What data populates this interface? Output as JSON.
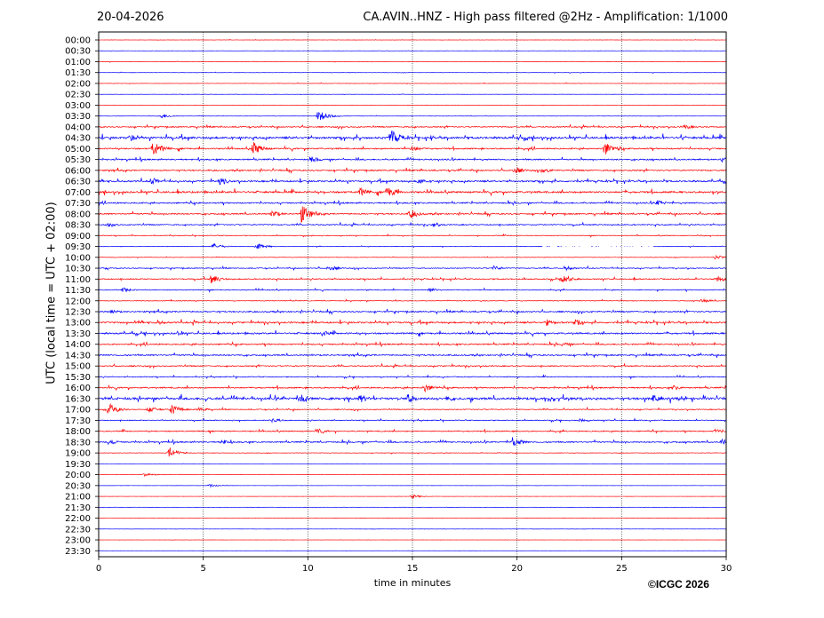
{
  "header": {
    "date": "20-04-2026",
    "title": "CA.AVIN..HNZ - High pass filtered @2Hz - Amplification: 1/1000"
  },
  "footer": {
    "copyright": "©ICGC 2026"
  },
  "colors": {
    "trace_a": "#ff0000",
    "trace_b": "#0000ff",
    "grid": "#000000",
    "axis": "#000000",
    "background": "#ffffff"
  },
  "chart_data": {
    "type": "line",
    "title": "CA.AVIN..HNZ - High pass filtered @2Hz - Amplification: 1/1000",
    "xlabel": "time in minutes",
    "ylabel": "UTC (local time = UTC + 02:00)",
    "xlim": [
      0,
      30
    ],
    "x_ticks": [
      0,
      5,
      10,
      15,
      20,
      25,
      30
    ],
    "grid": "vertical dotted lines at x ticks",
    "rows": [
      {
        "label": "00:00",
        "color": "red",
        "activity": 0.05,
        "events": []
      },
      {
        "label": "00:30",
        "color": "blue",
        "activity": 0.05,
        "events": []
      },
      {
        "label": "01:00",
        "color": "red",
        "activity": 0.08,
        "events": []
      },
      {
        "label": "01:30",
        "color": "blue",
        "activity": 0.08,
        "events": []
      },
      {
        "label": "02:00",
        "color": "red",
        "activity": 0.08,
        "events": []
      },
      {
        "label": "02:30",
        "color": "blue",
        "activity": 0.05,
        "events": []
      },
      {
        "label": "03:00",
        "color": "red",
        "activity": 0.05,
        "events": []
      },
      {
        "label": "03:30",
        "color": "blue",
        "activity": 0.08,
        "events": [
          {
            "t": 3.0,
            "a": 0.4
          },
          {
            "t": 10.5,
            "a": 1.0
          }
        ]
      },
      {
        "label": "04:00",
        "color": "red",
        "activity": 0.25,
        "events": [
          {
            "t": 28.0,
            "a": 0.4
          }
        ]
      },
      {
        "label": "04:30",
        "color": "blue",
        "activity": 0.45,
        "events": [
          {
            "t": 14.0,
            "a": 1.4
          },
          {
            "t": 1.5,
            "a": 0.6
          }
        ]
      },
      {
        "label": "05:00",
        "color": "red",
        "activity": 0.3,
        "events": [
          {
            "t": 2.6,
            "a": 1.2
          },
          {
            "t": 7.4,
            "a": 1.1
          },
          {
            "t": 24.2,
            "a": 1.2
          },
          {
            "t": 15.0,
            "a": 0.5
          }
        ]
      },
      {
        "label": "05:30",
        "color": "blue",
        "activity": 0.3,
        "events": [
          {
            "t": 10.2,
            "a": 0.5
          },
          {
            "t": 29.8,
            "a": 0.5
          }
        ]
      },
      {
        "label": "06:00",
        "color": "red",
        "activity": 0.3,
        "events": [
          {
            "t": 19.9,
            "a": 0.6
          },
          {
            "t": 21.2,
            "a": 0.5
          }
        ]
      },
      {
        "label": "06:30",
        "color": "blue",
        "activity": 0.35,
        "events": [
          {
            "t": 2.5,
            "a": 0.6
          },
          {
            "t": 5.8,
            "a": 0.6
          },
          {
            "t": 15.3,
            "a": 0.5
          }
        ]
      },
      {
        "label": "07:00",
        "color": "red",
        "activity": 0.4,
        "events": [
          {
            "t": 12.5,
            "a": 0.7
          },
          {
            "t": 13.8,
            "a": 0.9
          }
        ]
      },
      {
        "label": "07:30",
        "color": "blue",
        "activity": 0.3,
        "events": [
          {
            "t": 26.7,
            "a": 0.5
          }
        ]
      },
      {
        "label": "08:00",
        "color": "red",
        "activity": 0.3,
        "events": [
          {
            "t": 9.7,
            "a": 1.5
          },
          {
            "t": 8.3,
            "a": 0.6
          },
          {
            "t": 14.9,
            "a": 0.8
          }
        ]
      },
      {
        "label": "08:30",
        "color": "blue",
        "activity": 0.25,
        "events": [
          {
            "t": 0.5,
            "a": 0.4
          },
          {
            "t": 16.0,
            "a": 0.4
          }
        ]
      },
      {
        "label": "09:00",
        "color": "red",
        "activity": 0.15,
        "events": []
      },
      {
        "label": "09:30",
        "color": "blue",
        "activity": 0.12,
        "events": [
          {
            "t": 5.5,
            "a": 0.5
          },
          {
            "t": 7.6,
            "a": 0.5
          }
        ],
        "gap": [
          21.2,
          26.5
        ]
      },
      {
        "label": "10:00",
        "color": "red",
        "activity": 0.1,
        "events": [
          {
            "t": 29.5,
            "a": 0.4
          }
        ]
      },
      {
        "label": "10:30",
        "color": "blue",
        "activity": 0.2,
        "events": [
          {
            "t": 11.0,
            "a": 0.5
          },
          {
            "t": 18.9,
            "a": 0.4
          },
          {
            "t": 22.3,
            "a": 0.4
          }
        ]
      },
      {
        "label": "11:00",
        "color": "red",
        "activity": 0.25,
        "events": [
          {
            "t": 5.4,
            "a": 0.8
          },
          {
            "t": 22.2,
            "a": 0.8
          },
          {
            "t": 29.6,
            "a": 0.5
          }
        ]
      },
      {
        "label": "11:30",
        "color": "blue",
        "activity": 0.2,
        "events": [
          {
            "t": 1.2,
            "a": 0.4
          },
          {
            "t": 15.8,
            "a": 0.4
          }
        ]
      },
      {
        "label": "12:00",
        "color": "red",
        "activity": 0.15,
        "events": [
          {
            "t": 28.8,
            "a": 0.4
          }
        ]
      },
      {
        "label": "12:30",
        "color": "blue",
        "activity": 0.3,
        "events": [
          {
            "t": 0.6,
            "a": 0.4
          }
        ]
      },
      {
        "label": "13:00",
        "color": "red",
        "activity": 0.35,
        "events": [
          {
            "t": 21.4,
            "a": 0.6
          },
          {
            "t": 22.8,
            "a": 0.5
          },
          {
            "t": 2.8,
            "a": 0.4
          }
        ]
      },
      {
        "label": "13:30",
        "color": "blue",
        "activity": 0.35,
        "events": [
          {
            "t": 10.7,
            "a": 0.5
          },
          {
            "t": 3.7,
            "a": 0.4
          }
        ]
      },
      {
        "label": "14:00",
        "color": "red",
        "activity": 0.3,
        "events": [
          {
            "t": 22.2,
            "a": 0.4
          }
        ]
      },
      {
        "label": "14:30",
        "color": "blue",
        "activity": 0.3,
        "events": []
      },
      {
        "label": "15:00",
        "color": "red",
        "activity": 0.25,
        "events": []
      },
      {
        "label": "15:30",
        "color": "blue",
        "activity": 0.2,
        "events": []
      },
      {
        "label": "16:00",
        "color": "red",
        "activity": 0.3,
        "events": [
          {
            "t": 15.6,
            "a": 0.7
          },
          {
            "t": 27.5,
            "a": 0.4
          }
        ]
      },
      {
        "label": "16:30",
        "color": "blue",
        "activity": 0.5,
        "events": [
          {
            "t": 9.7,
            "a": 0.8
          },
          {
            "t": 12.5,
            "a": 0.7
          },
          {
            "t": 14.8,
            "a": 0.8
          },
          {
            "t": 16.6,
            "a": 0.6
          },
          {
            "t": 26.5,
            "a": 0.6
          }
        ]
      },
      {
        "label": "17:00",
        "color": "red",
        "activity": 0.2,
        "events": [
          {
            "t": 0.5,
            "a": 1.0
          },
          {
            "t": 2.4,
            "a": 0.6
          },
          {
            "t": 3.5,
            "a": 0.8
          },
          {
            "t": 4.8,
            "a": 0.4
          }
        ]
      },
      {
        "label": "17:30",
        "color": "blue",
        "activity": 0.2,
        "events": [
          {
            "t": 8.3,
            "a": 0.4
          },
          {
            "t": 23.0,
            "a": 0.4
          }
        ]
      },
      {
        "label": "18:00",
        "color": "red",
        "activity": 0.25,
        "events": [
          {
            "t": 10.5,
            "a": 0.4
          },
          {
            "t": 29.5,
            "a": 0.4
          }
        ]
      },
      {
        "label": "18:30",
        "color": "blue",
        "activity": 0.3,
        "events": [
          {
            "t": 19.8,
            "a": 0.9
          },
          {
            "t": 0.5,
            "a": 0.5
          },
          {
            "t": 5.9,
            "a": 0.5
          },
          {
            "t": 29.8,
            "a": 0.5
          }
        ]
      },
      {
        "label": "19:00",
        "color": "red",
        "activity": 0.1,
        "events": [
          {
            "t": 3.4,
            "a": 0.8
          }
        ]
      },
      {
        "label": "19:30",
        "color": "blue",
        "activity": 0.03,
        "events": []
      },
      {
        "label": "20:00",
        "color": "red",
        "activity": 0.03,
        "events": [
          {
            "t": 2.2,
            "a": 0.3
          }
        ]
      },
      {
        "label": "20:30",
        "color": "blue",
        "activity": 0.03,
        "events": [
          {
            "t": 5.3,
            "a": 0.3
          }
        ]
      },
      {
        "label": "21:00",
        "color": "red",
        "activity": 0.03,
        "events": [
          {
            "t": 15.0,
            "a": 0.3
          }
        ]
      },
      {
        "label": "21:30",
        "color": "blue",
        "activity": 0.03,
        "events": []
      },
      {
        "label": "22:00",
        "color": "red",
        "activity": 0.03,
        "events": []
      },
      {
        "label": "22:30",
        "color": "blue",
        "activity": 0.04,
        "events": []
      },
      {
        "label": "23:00",
        "color": "red",
        "activity": 0.03,
        "events": []
      },
      {
        "label": "23:30",
        "color": "blue",
        "activity": 0.03,
        "events": []
      }
    ]
  }
}
